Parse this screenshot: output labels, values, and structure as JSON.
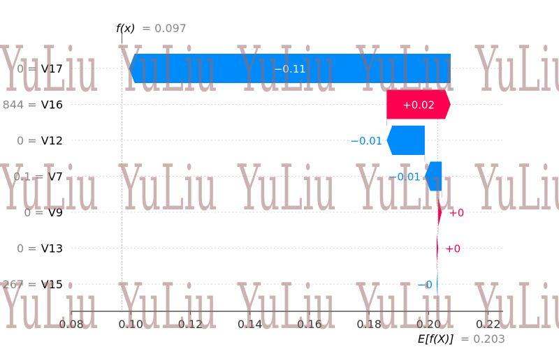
{
  "chart_data": {
    "type": "waterfall",
    "title": "",
    "xlim": [
      0.08,
      0.225
    ],
    "x_ticks": [
      "0.08",
      "0.10",
      "0.12",
      "0.14",
      "0.16",
      "0.18",
      "0.20",
      "0.22"
    ],
    "x_tick_values": [
      0.08,
      0.1,
      0.12,
      0.14,
      0.16,
      0.18,
      0.2,
      0.22
    ],
    "fx": {
      "label": "f(x)",
      "value": 0.097,
      "value_text": "= 0.097"
    },
    "base": {
      "label": "E[f(X)]",
      "value": 0.203,
      "value_text": "= 0.203"
    },
    "features": [
      {
        "value_text": "0 =",
        "name": "V17",
        "contribution": -0.108,
        "label": "−0.11"
      },
      {
        "value_text": "844 =",
        "name": "V16",
        "contribution": 0.0215,
        "label": "+0.02"
      },
      {
        "value_text": "0 =",
        "name": "V12",
        "contribution": -0.0128,
        "label": "−0.01"
      },
      {
        "value_text": "0.1 =",
        "name": "V7",
        "contribution": -0.0057,
        "label": "−0.01"
      },
      {
        "value_text": "0 =",
        "name": "V9",
        "contribution": 0.0012,
        "label": "+0"
      },
      {
        "value_text": "0 =",
        "name": "V13",
        "contribution": 0.0005,
        "label": "+0"
      },
      {
        "value_text": "267 =",
        "name": "V15",
        "contribution": -0.0003,
        "label": "−0"
      }
    ],
    "colors": {
      "positive": "#ff0051",
      "negative": "#008bfb",
      "axis": "#333333",
      "muted": "#888888"
    }
  },
  "watermark": {
    "text": "YuLiu"
  }
}
